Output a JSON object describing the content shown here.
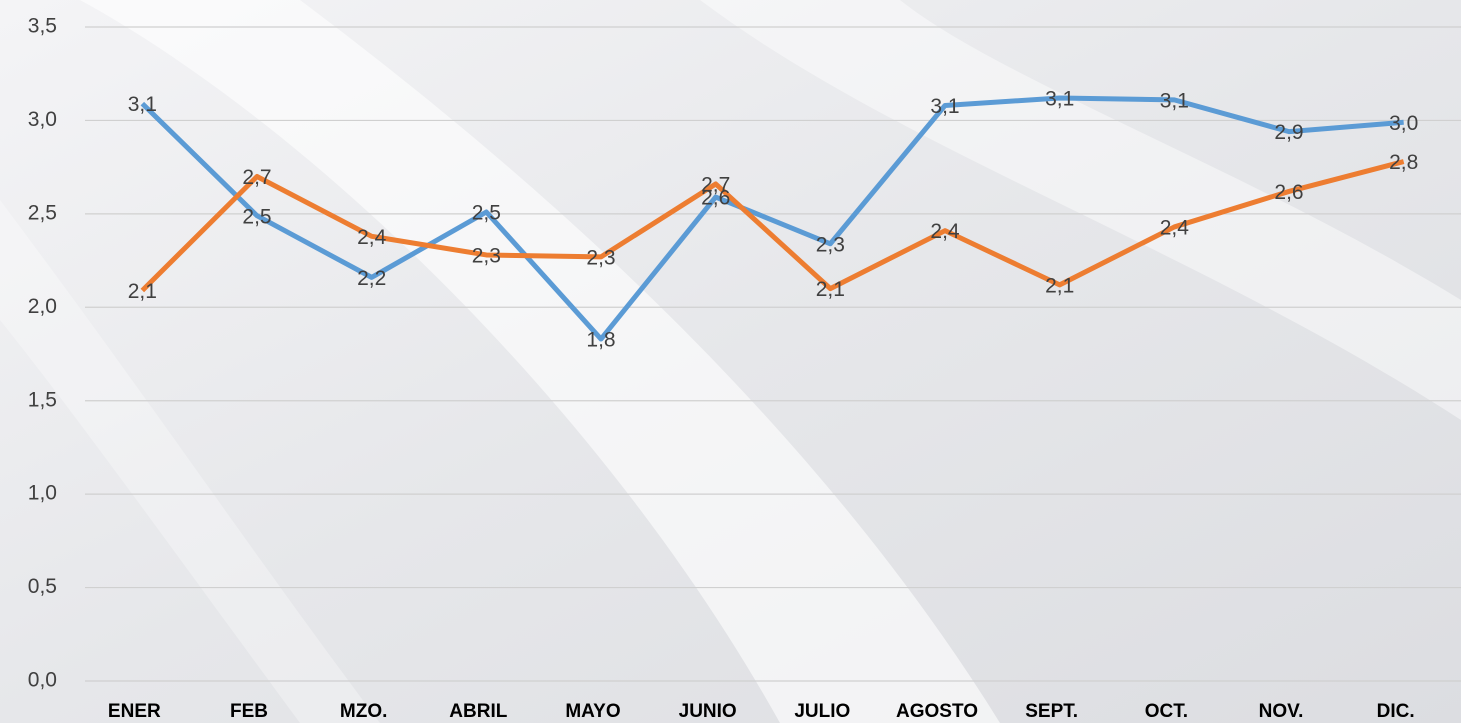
{
  "chart_data": {
    "type": "line",
    "categories": [
      "ENER",
      "FEB",
      "MZO.",
      "ABRIL",
      "MAYO",
      "JUNIO",
      "JULIO",
      "AGOSTO",
      "SEPT.",
      "OCT.",
      "NOV.",
      "DIC."
    ],
    "series": [
      {
        "color": "#5b9bd5",
        "values": [
          3.09,
          2.49,
          2.16,
          2.51,
          1.83,
          2.59,
          2.34,
          3.08,
          3.12,
          3.11,
          2.94,
          2.99
        ],
        "value_labels": [
          "3,1",
          "2,5",
          "2,2",
          "2,5",
          "1,8",
          "2,6",
          "2,3",
          "3,1",
          "3,1",
          "3,1",
          "2,9",
          "3,0"
        ]
      },
      {
        "color": "#ed7d31",
        "values": [
          2.09,
          2.7,
          2.38,
          2.28,
          2.27,
          2.66,
          2.1,
          2.41,
          2.12,
          2.43,
          2.62,
          2.78
        ],
        "value_labels": [
          "2,1",
          "2,7",
          "2,4",
          "2,3",
          "2,3",
          "2,7",
          "2,1",
          "2,4",
          "2,1",
          "2,4",
          "2,6",
          "2,8"
        ]
      }
    ],
    "ylim": [
      0,
      3.5
    ],
    "yticks": [
      {
        "value": 0,
        "label": "0,0"
      },
      {
        "value": 0.5,
        "label": "0,5"
      },
      {
        "value": 1,
        "label": "1,0"
      },
      {
        "value": 1.5,
        "label": "1,5"
      },
      {
        "value": 2,
        "label": "2,0"
      },
      {
        "value": 2.5,
        "label": "2,5"
      },
      {
        "value": 3,
        "label": "3,0"
      },
      {
        "value": 3.5,
        "label": "3,5"
      }
    ],
    "grid": true
  }
}
